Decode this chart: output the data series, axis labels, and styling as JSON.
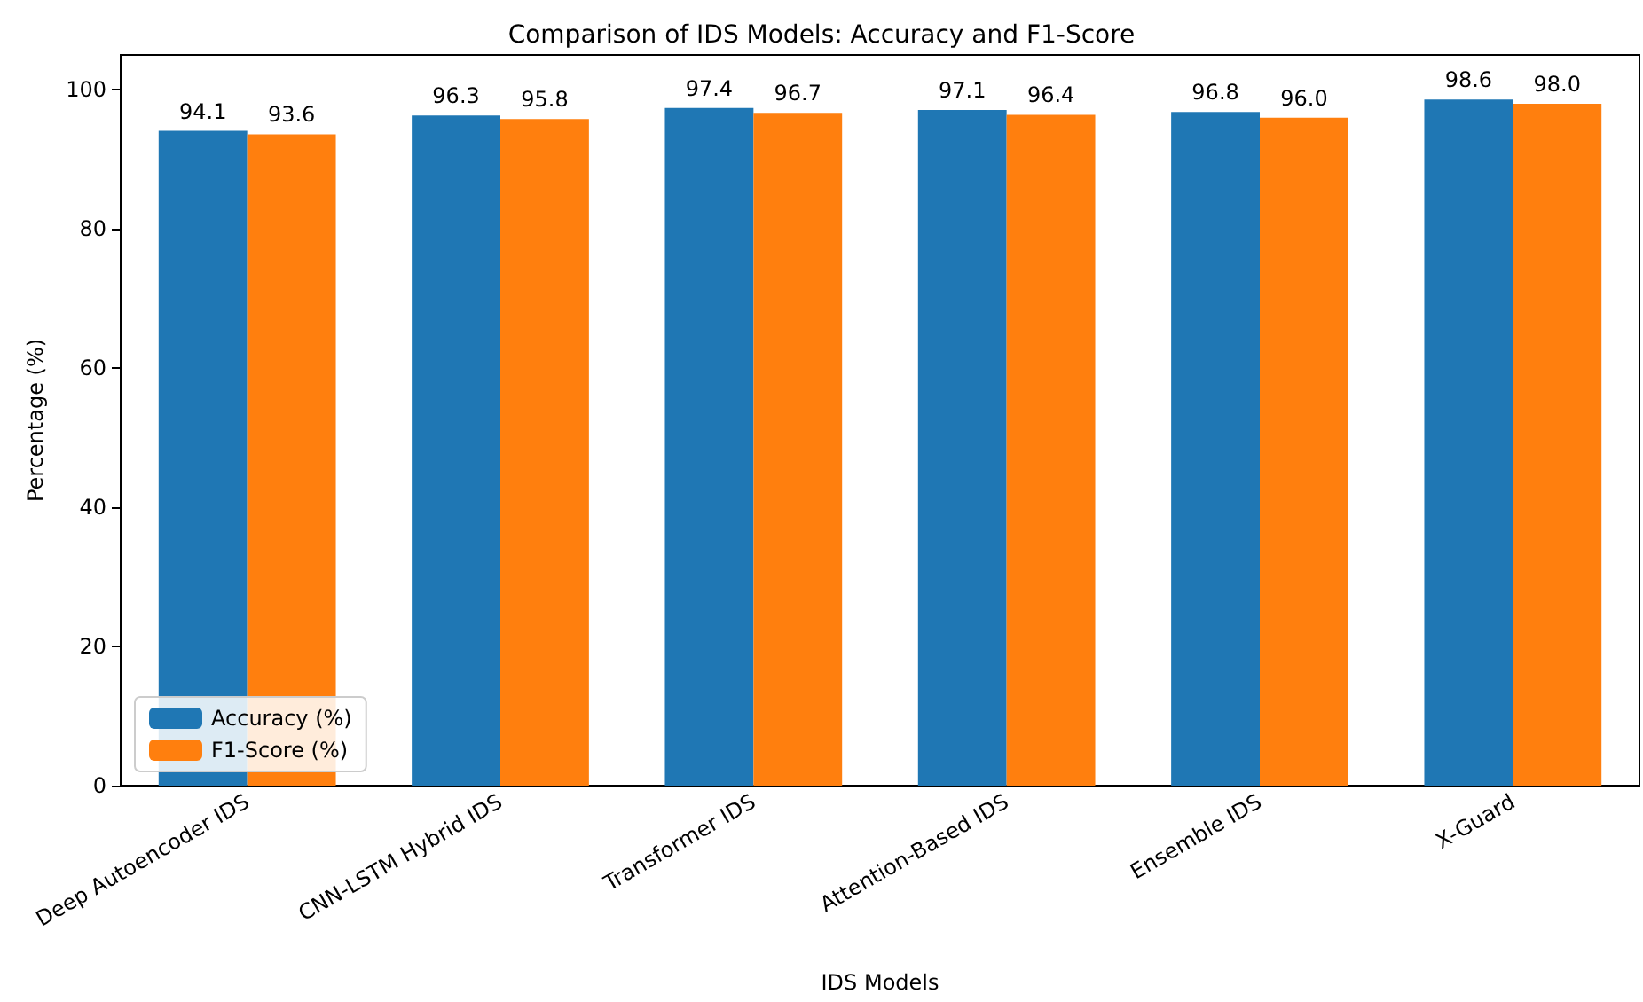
{
  "chart_data": {
    "type": "bar",
    "title": "Comparison of IDS Models: Accuracy and F1-Score",
    "xlabel": "IDS Models",
    "ylabel": "Percentage (%)",
    "categories": [
      "Deep Autoencoder IDS",
      "CNN-LSTM Hybrid IDS",
      "Transformer IDS",
      "Attention-Based IDS",
      "Ensemble IDS",
      "X-Guard"
    ],
    "series": [
      {
        "name": "Accuracy (%)",
        "color": "#1f77b4",
        "values": [
          94.1,
          96.3,
          97.4,
          97.1,
          96.8,
          98.6
        ],
        "value_labels": [
          "94.1",
          "96.3",
          "97.4",
          "97.1",
          "96.8",
          "98.6"
        ]
      },
      {
        "name": "F1-Score (%)",
        "color": "#ff7f0e",
        "values": [
          93.6,
          95.8,
          96.7,
          96.4,
          96.0,
          98.0
        ],
        "value_labels": [
          "93.6",
          "95.8",
          "96.7",
          "96.4",
          "96.0",
          "98.0"
        ]
      }
    ],
    "ylim": [
      0,
      105
    ],
    "yticks": [
      0,
      20,
      40,
      60,
      80,
      100
    ],
    "grid": false,
    "legend": "bottom left"
  }
}
